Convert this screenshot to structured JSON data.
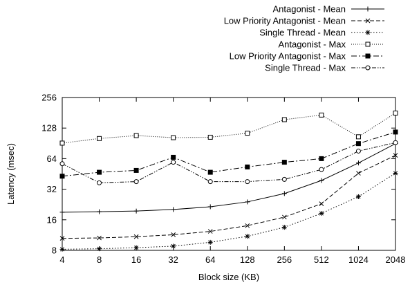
{
  "chart_data": {
    "type": "line",
    "xlabel": "Block size (KB)",
    "ylabel": "Latency (msec)",
    "x_categories": [
      "4",
      "8",
      "16",
      "32",
      "64",
      "128",
      "256",
      "512",
      "1024",
      "2048"
    ],
    "y_scale": "log2",
    "ylim": [
      8,
      256
    ],
    "y_ticks": [
      8,
      16,
      32,
      64,
      128,
      256
    ],
    "y_tick_labels": [
      "8",
      "16",
      "32",
      "64",
      "128",
      "256"
    ],
    "grid": false,
    "legend_position": "top-right, above plot",
    "series": [
      {
        "name": "Antagonist - Mean",
        "marker": "plus",
        "dash": "",
        "values": [
          19.0,
          19.2,
          19.5,
          20.2,
          21.5,
          24.0,
          29.0,
          39.0,
          58.0,
          90.0
        ]
      },
      {
        "name": "Low Priority Antagonist - Mean",
        "marker": "cross",
        "dash": "6,3",
        "values": [
          10.5,
          10.6,
          10.9,
          11.4,
          12.3,
          14.0,
          17.0,
          23.0,
          46.0,
          69.0
        ]
      },
      {
        "name": "Single Thread - Mean",
        "marker": "asterisk",
        "dash": "1.5,2.5",
        "values": [
          8.2,
          8.3,
          8.5,
          8.8,
          9.6,
          11.0,
          13.5,
          18.5,
          27.0,
          46.0
        ]
      },
      {
        "name": "Antagonist - Max",
        "marker": "open-square",
        "dash": "1,2",
        "values": [
          91,
          101,
          108,
          103,
          104,
          114,
          155,
          172,
          105,
          180
        ]
      },
      {
        "name": "Low Priority Antagonist - Max",
        "marker": "filled-square",
        "dash": "8,3,2,3",
        "values": [
          43,
          47,
          49,
          66,
          47,
          53,
          59,
          64,
          90,
          117
        ]
      },
      {
        "name": "Single Thread - Max",
        "marker": "open-circle",
        "dash": "6,2,1.5,2,1.5,2",
        "values": [
          57,
          37,
          38,
          59,
          38,
          38,
          40,
          50,
          76,
          92
        ]
      }
    ]
  }
}
